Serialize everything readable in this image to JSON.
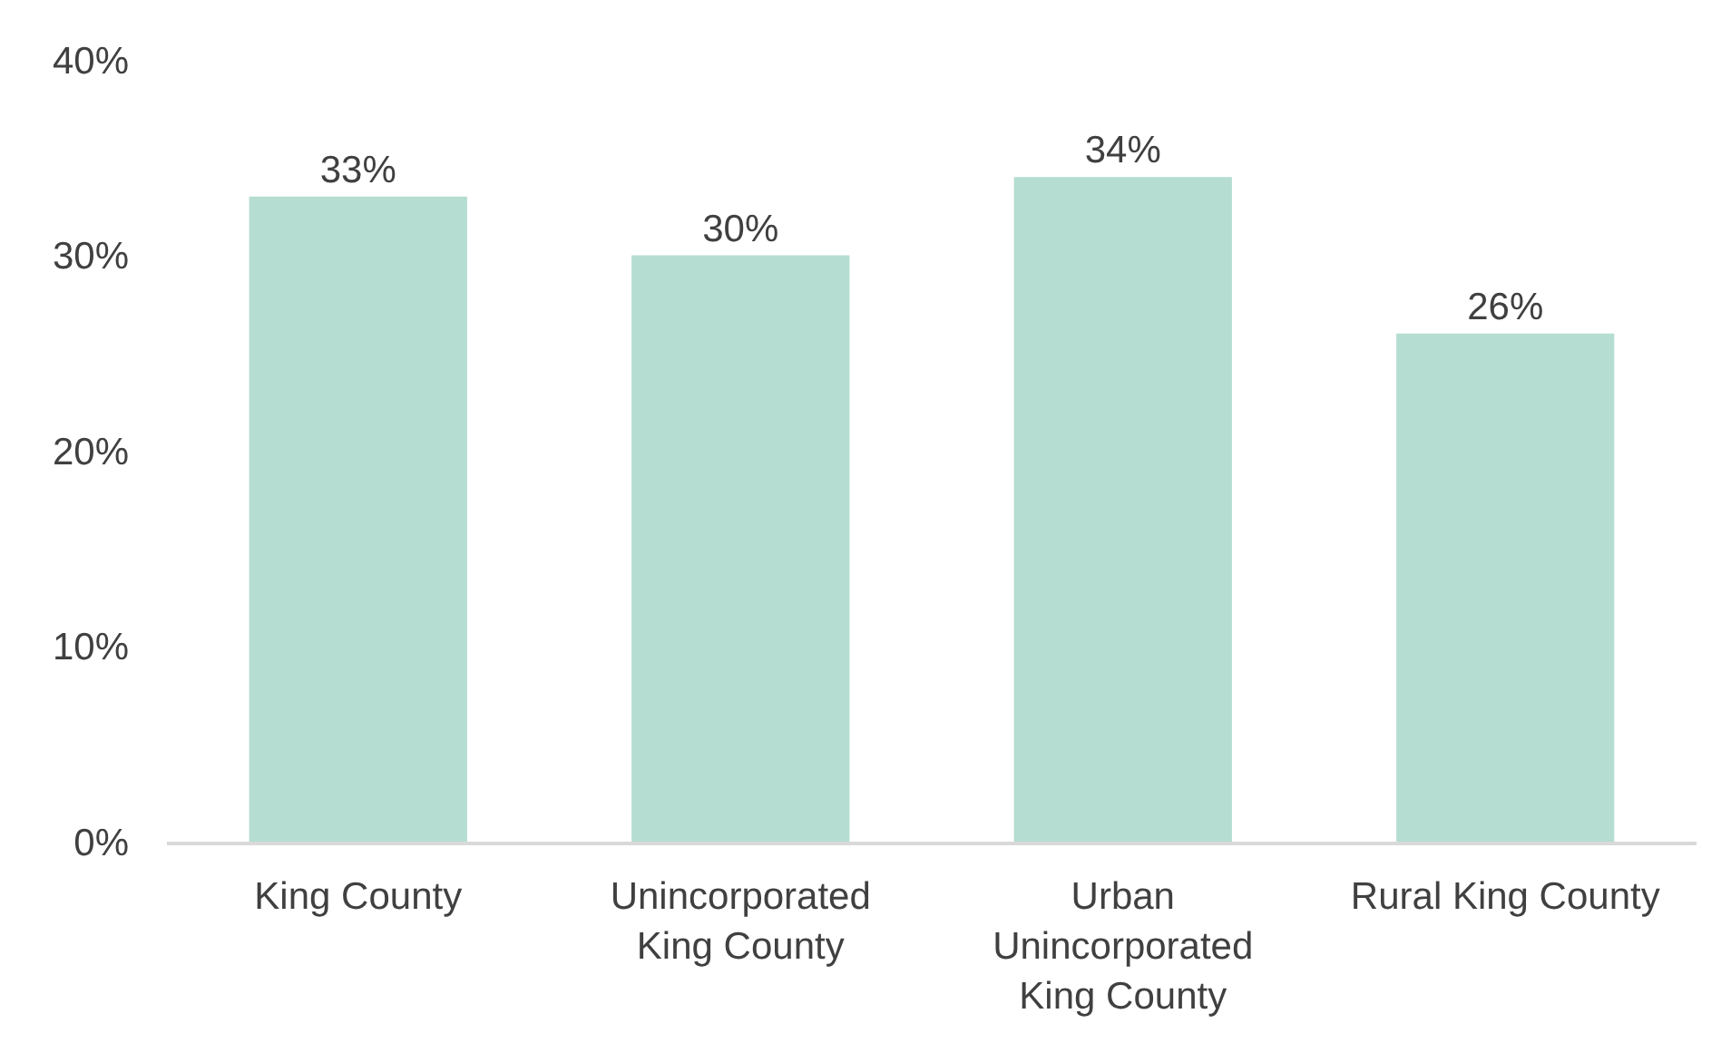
{
  "chart_data": {
    "type": "bar",
    "categories": [
      "King County",
      "Unincorporated King County",
      "Urban Unincorporated King County",
      "Rural King County"
    ],
    "values": [
      33,
      30,
      34,
      26
    ],
    "value_labels": [
      "33%",
      "30%",
      "34%",
      "26%"
    ],
    "color": "#b5ddd2",
    "ylim": [
      0,
      40
    ],
    "yticks": [
      {
        "value": 0,
        "label": "0%"
      },
      {
        "value": 10,
        "label": "10%"
      },
      {
        "value": 20,
        "label": "20%"
      },
      {
        "value": 30,
        "label": "30%"
      },
      {
        "value": 40,
        "label": "40%"
      }
    ]
  }
}
